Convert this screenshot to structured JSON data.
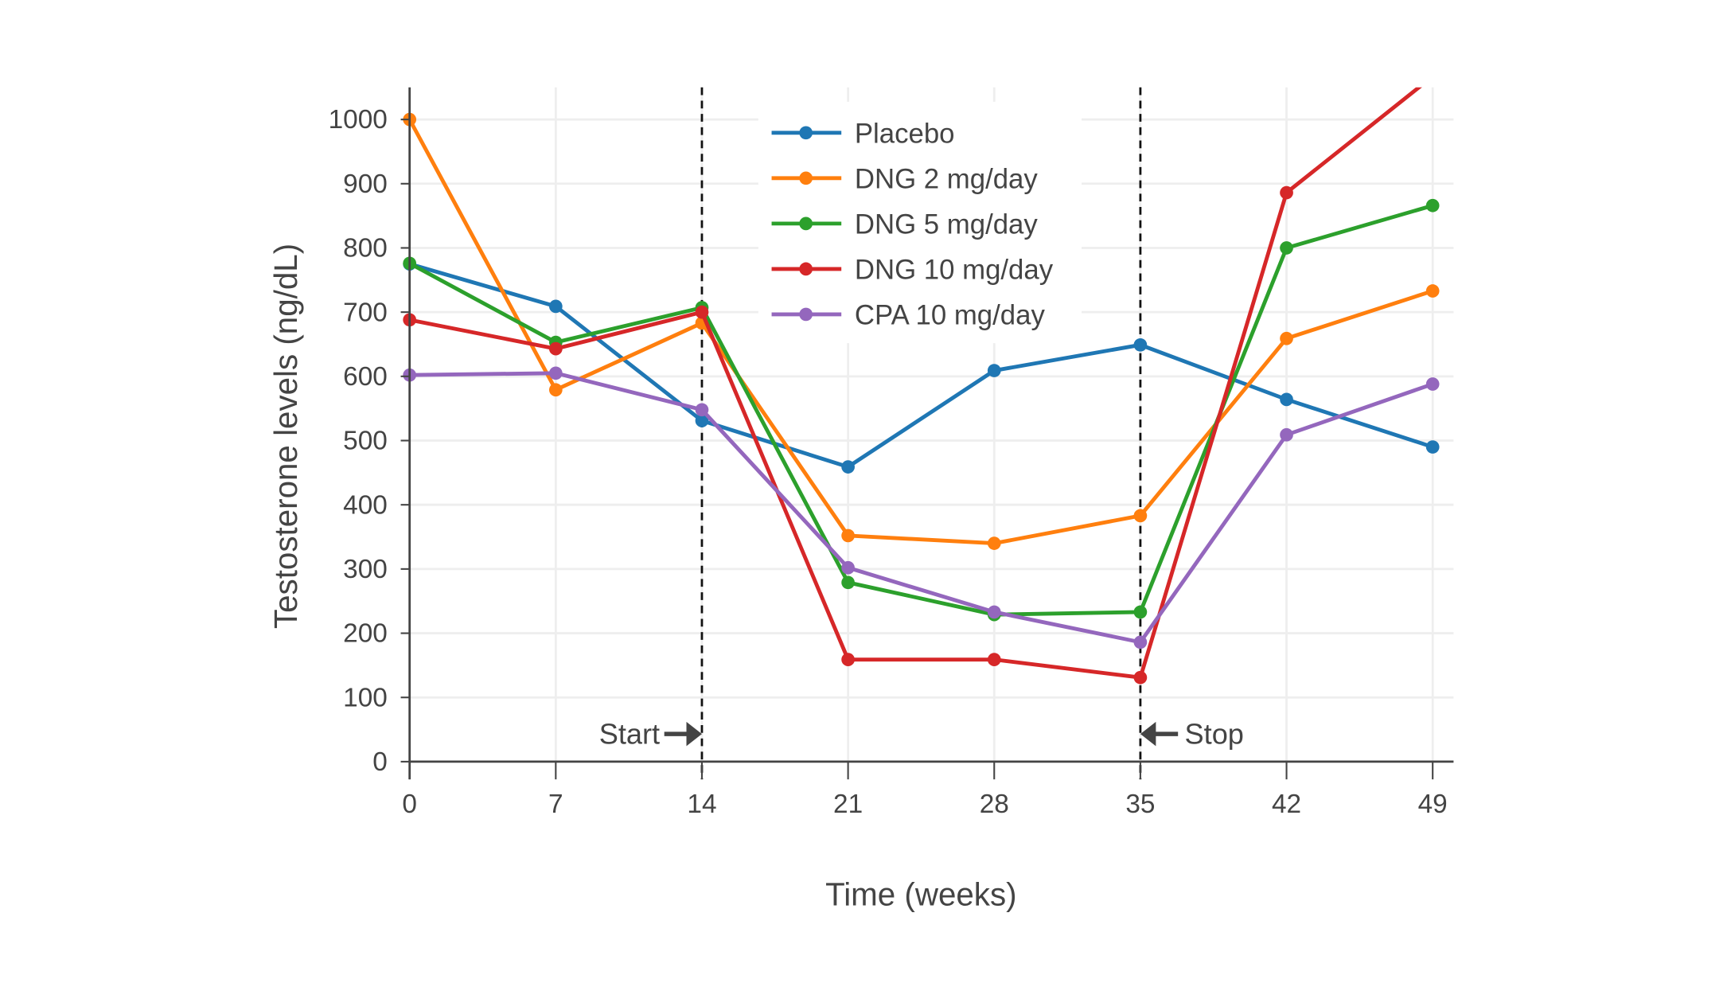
{
  "chart_data": {
    "type": "line",
    "title": "",
    "xlabel": "Time (weeks)",
    "ylabel": "Testosterone levels (ng/dL)",
    "xlim": [
      0,
      50
    ],
    "ylim": [
      0,
      1050
    ],
    "x": [
      0,
      7,
      14,
      21,
      28,
      35,
      42,
      49
    ],
    "xticks": [
      "0",
      "7",
      "14",
      "21",
      "28",
      "35",
      "42",
      "49"
    ],
    "yticks": [
      "0",
      "100",
      "200",
      "300",
      "400",
      "500",
      "600",
      "700",
      "800",
      "900",
      "1000"
    ],
    "grid": true,
    "legend_placement": "top-center",
    "series": [
      {
        "name": "Placebo",
        "color": "#1f77b4",
        "values": [
          775,
          709,
          531,
          459,
          609,
          649,
          564,
          490
        ]
      },
      {
        "name": "DNG 2 mg/day",
        "color": "#ff7f0e",
        "values": [
          1000,
          579,
          683,
          352,
          340,
          383,
          659,
          733
        ]
      },
      {
        "name": "DNG 5 mg/day",
        "color": "#2ca02c",
        "values": [
          776,
          653,
          707,
          279,
          229,
          233,
          800,
          866
        ]
      },
      {
        "name": "DNG 10 mg/day",
        "color": "#d62728",
        "values": [
          688,
          643,
          700,
          159,
          159,
          131,
          886,
          1067
        ]
      },
      {
        "name": "CPA 10 mg/day",
        "color": "#9467bd",
        "values": [
          602,
          605,
          548,
          302,
          233,
          186,
          509,
          588
        ]
      }
    ],
    "vlines": [
      14,
      35
    ],
    "annotations": [
      {
        "text": "Start",
        "x": 14,
        "y": 50,
        "arrow": "right"
      },
      {
        "text": "Stop",
        "x": 35,
        "y": 50,
        "arrow": "left"
      }
    ]
  }
}
